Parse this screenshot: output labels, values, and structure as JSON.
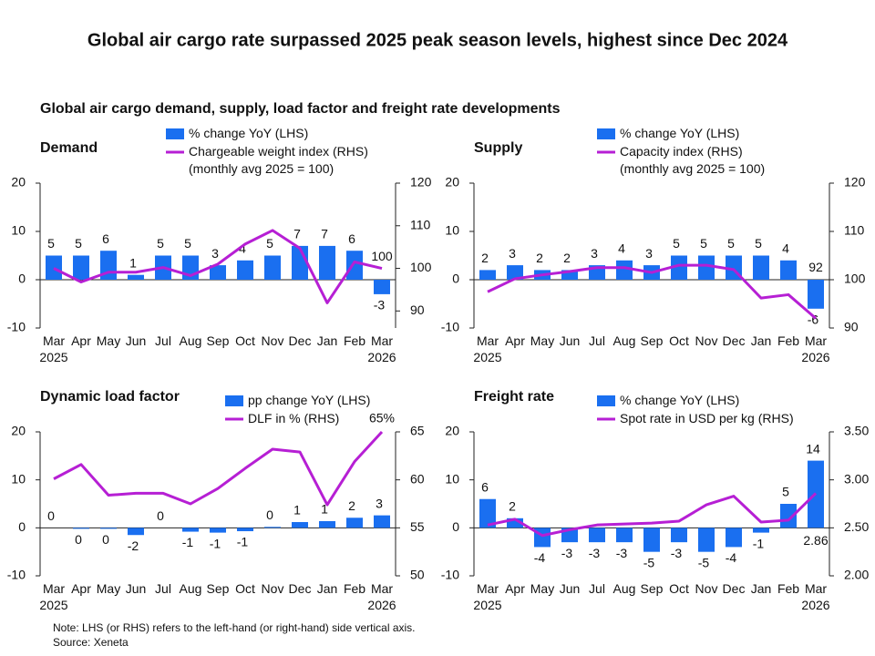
{
  "title": "Global air cargo rate surpassed 2025 peak season levels, highest since Dec 2024",
  "subtitle": "Global air cargo demand, supply, load factor and freight rate developments",
  "note": "Note: LHS (or RHS) refers to the left-hand (or right-hand) side vertical axis.",
  "source": "Source: Xeneta",
  "chart_data": [
    {
      "type": "combo",
      "title": "Demand",
      "categories": [
        "Mar 2025",
        "Apr",
        "May",
        "Jun",
        "Jul",
        "Aug",
        "Sep",
        "Oct",
        "Nov",
        "Dec",
        "Jan",
        "Feb",
        "Mar 2026"
      ],
      "ylim": [
        -10,
        20
      ],
      "yticks": [
        -10,
        0,
        10,
        20
      ],
      "y2lim": [
        86,
        120
      ],
      "y2ticks": [
        90,
        100,
        110,
        120
      ],
      "series": [
        {
          "name": "% change YoY (LHS)",
          "type": "bar",
          "color": "#1a6ff0",
          "values": [
            5,
            5,
            6,
            1,
            5,
            5,
            3,
            4,
            5,
            7,
            7,
            6,
            -3
          ]
        },
        {
          "name": "Chargeable weight index (RHS)\n(monthly avg 2025 = 100)",
          "type": "line",
          "axis": "y2",
          "color": "#b61fd4",
          "values": [
            100,
            96.8,
            99.1,
            99.1,
            100.2,
            98.3,
            101,
            105.7,
            108.9,
            104.7,
            91.9,
            101.5,
            100
          ],
          "value_labels": [
            null,
            null,
            null,
            null,
            null,
            null,
            null,
            null,
            null,
            null,
            null,
            null,
            "100"
          ]
        }
      ]
    },
    {
      "type": "combo",
      "title": "Supply",
      "categories": [
        "Mar 2025",
        "Apr",
        "May",
        "Jun",
        "Jul",
        "Aug",
        "Sep",
        "Oct",
        "Nov",
        "Dec",
        "Jan",
        "Feb",
        "Mar 2026"
      ],
      "ylim": [
        -10,
        20
      ],
      "yticks": [
        -10,
        0,
        10,
        20
      ],
      "y2lim": [
        90,
        120
      ],
      "y2ticks": [
        90,
        100,
        110,
        120
      ],
      "series": [
        {
          "name": "% change YoY (LHS)",
          "type": "bar",
          "color": "#1a6ff0",
          "values": [
            2,
            3,
            2,
            2,
            3,
            4,
            3,
            5,
            5,
            5,
            5,
            4,
            -6
          ]
        },
        {
          "name": "Capacity index (RHS)\n(monthly avg 2025 = 100)",
          "type": "line",
          "axis": "y2",
          "color": "#b61fd4",
          "values": [
            97.5,
            100.2,
            101,
            101.7,
            102.5,
            102.5,
            101.5,
            103,
            103,
            102.1,
            96.2,
            96.9,
            92
          ],
          "value_labels": [
            null,
            null,
            null,
            null,
            null,
            null,
            null,
            null,
            null,
            null,
            null,
            null,
            "92"
          ]
        }
      ]
    },
    {
      "type": "combo",
      "title": "Dynamic load factor",
      "categories": [
        "Mar 2025",
        "Apr",
        "May",
        "Jun",
        "Jul",
        "Aug",
        "Sep",
        "Oct",
        "Nov",
        "Dec",
        "Jan",
        "Feb",
        "Mar 2026"
      ],
      "ylim": [
        -10,
        20
      ],
      "yticks": [
        -10,
        0,
        10,
        20
      ],
      "y2lim": [
        50,
        65
      ],
      "y2ticks": [
        50,
        55,
        60,
        65
      ],
      "series": [
        {
          "name": "pp change YoY (LHS)",
          "type": "bar",
          "color": "#1a6ff0",
          "values": [
            0,
            -0.2,
            -0.2,
            -1.5,
            0,
            -0.8,
            -1,
            -0.7,
            0.2,
            1.2,
            1.4,
            2.1,
            2.6
          ],
          "value_labels": [
            "0",
            "0",
            "0",
            "-2",
            "0",
            "-1",
            "-1",
            "-1",
            "0",
            "1",
            "1",
            "2",
            "3"
          ]
        },
        {
          "name": "DLF in % (RHS)",
          "type": "line",
          "axis": "y2",
          "color": "#b61fd4",
          "values": [
            60.1,
            61.6,
            58.4,
            58.6,
            58.6,
            57.5,
            59.1,
            61.2,
            63.2,
            62.9,
            57.4,
            61.9,
            65
          ],
          "value_labels": [
            null,
            null,
            null,
            null,
            null,
            null,
            null,
            null,
            null,
            null,
            null,
            null,
            "65%"
          ]
        }
      ]
    },
    {
      "type": "combo",
      "title": "Freight rate",
      "categories": [
        "Mar 2025",
        "Apr",
        "May",
        "Jun",
        "Jul",
        "Aug",
        "Sep",
        "Oct",
        "Nov",
        "Dec",
        "Jan",
        "Feb",
        "Mar 2026"
      ],
      "ylim": [
        -10,
        20
      ],
      "yticks": [
        -10,
        0,
        10,
        20
      ],
      "y2lim": [
        2,
        3.5
      ],
      "y2ticks": [
        {
          "value": 2,
          "label": "2.00"
        },
        {
          "value": 2.5,
          "label": "2.50"
        },
        {
          "value": 3,
          "label": "3.00"
        },
        {
          "value": 3.5,
          "label": "3.50"
        }
      ],
      "series": [
        {
          "name": "% change YoY (LHS)",
          "type": "bar",
          "color": "#1a6ff0",
          "values": [
            6,
            2,
            -4,
            -3,
            -3,
            -3,
            -5,
            -3,
            -5,
            -4,
            -1,
            5,
            14
          ]
        },
        {
          "name": "Spot rate in USD per kg (RHS)",
          "type": "line",
          "axis": "y2",
          "color": "#b61fd4",
          "values": [
            2.53,
            2.59,
            2.42,
            2.48,
            2.53,
            2.54,
            2.55,
            2.57,
            2.74,
            2.83,
            2.56,
            2.58,
            2.86
          ]
        }
      ]
    }
  ]
}
